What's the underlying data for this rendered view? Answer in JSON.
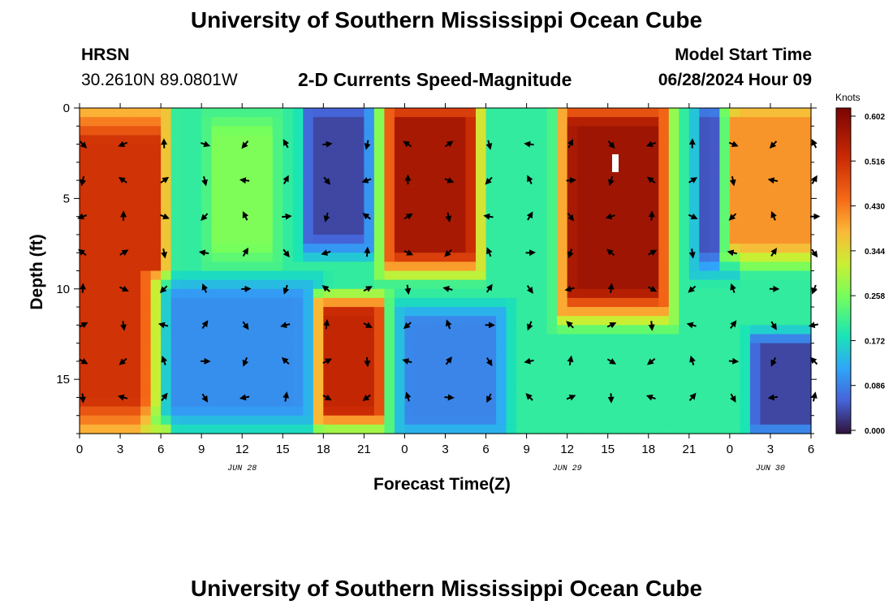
{
  "header": {
    "title": "University of Southern Mississippi Ocean Cube",
    "station": "HRSN",
    "location": "30.2610N  89.0801W",
    "product": "2-D Currents Speed-Magnitude",
    "model_label": "Model Start Time",
    "model_time": "06/28/2024 Hour 09"
  },
  "footer": {
    "title": "University of Southern Mississippi Ocean Cube"
  },
  "chart_data": {
    "type": "heatmap",
    "title": "2-D Currents Speed-Magnitude",
    "xlabel": "Forecast Time(Z)",
    "ylabel": "Depth (ft)",
    "x_range_hours": [
      0,
      54
    ],
    "ylim": [
      0,
      18
    ],
    "y_ticks": [
      0,
      5,
      10,
      15
    ],
    "x_ticks": [
      {
        "hour": 0,
        "label": "0"
      },
      {
        "hour": 3,
        "label": "3"
      },
      {
        "hour": 6,
        "label": "6"
      },
      {
        "hour": 9,
        "label": "9"
      },
      {
        "hour": 12,
        "label": "12"
      },
      {
        "hour": 15,
        "label": "15"
      },
      {
        "hour": 18,
        "label": "18"
      },
      {
        "hour": 21,
        "label": "21"
      },
      {
        "hour": 24,
        "label": "0"
      },
      {
        "hour": 27,
        "label": "3"
      },
      {
        "hour": 30,
        "label": "6"
      },
      {
        "hour": 33,
        "label": "9"
      },
      {
        "hour": 36,
        "label": "12"
      },
      {
        "hour": 39,
        "label": "15"
      },
      {
        "hour": 42,
        "label": "18"
      },
      {
        "hour": 45,
        "label": "21"
      },
      {
        "hour": 48,
        "label": "0"
      },
      {
        "hour": 51,
        "label": "3"
      },
      {
        "hour": 54,
        "label": "6"
      }
    ],
    "date_labels": [
      {
        "hour": 12,
        "label": "JUN 28"
      },
      {
        "hour": 36,
        "label": "JUN 29"
      },
      {
        "hour": 51,
        "label": "JUN 30"
      }
    ],
    "colorbar": {
      "unit": "Knots",
      "min": 0.0,
      "max": 0.602,
      "ticks": [
        "0.602",
        "0.516",
        "0.430",
        "0.344",
        "0.258",
        "0.172",
        "0.086",
        "0.000"
      ]
    },
    "speed_field": [
      {
        "hours": [
          0,
          6
        ],
        "depth": [
          0,
          18
        ],
        "speed": 0.5
      },
      {
        "hours": [
          6,
          17
        ],
        "depth": [
          10,
          17
        ],
        "speed": 0.1
      },
      {
        "hours": [
          10,
          14
        ],
        "depth": [
          1,
          8
        ],
        "speed": 0.26
      },
      {
        "hours": [
          17,
          21
        ],
        "depth": [
          0,
          7.5
        ],
        "speed": 0.04
      },
      {
        "hours": [
          18,
          22
        ],
        "depth": [
          11,
          17
        ],
        "speed": 0.52
      },
      {
        "hours": [
          23,
          29
        ],
        "depth": [
          0,
          8.5
        ],
        "speed": 0.55
      },
      {
        "hours": [
          24,
          31
        ],
        "depth": [
          11.5,
          17.5
        ],
        "speed": 0.09
      },
      {
        "hours": [
          36,
          43
        ],
        "depth": [
          0,
          11
        ],
        "speed": 0.56
      },
      {
        "hours": [
          46,
          48
        ],
        "depth": [
          0,
          8.5
        ],
        "speed": 0.05
      },
      {
        "hours": [
          48,
          54
        ],
        "depth": [
          0,
          8
        ],
        "speed": 0.4
      },
      {
        "hours": [
          50,
          54
        ],
        "depth": [
          13,
          17.5
        ],
        "speed": 0.04
      }
    ]
  }
}
